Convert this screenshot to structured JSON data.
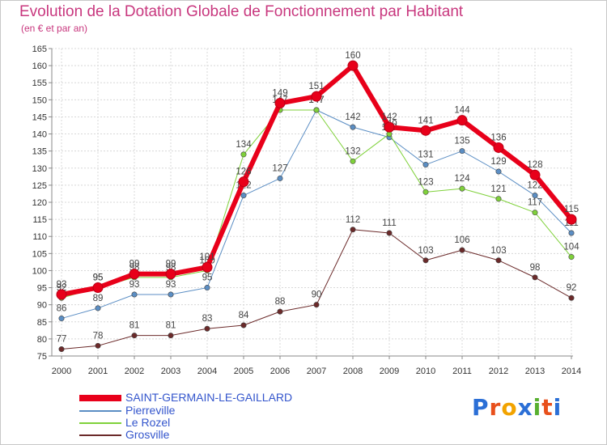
{
  "title": "Evolution de la Dotation Globale de Fonctionnement par Habitant",
  "subtitle": "(en € et par an)",
  "logo": {
    "letters": [
      "P",
      "r",
      "o",
      "x",
      "i",
      "t",
      "i"
    ],
    "colors": [
      "#2b6fd6",
      "#e8501c",
      "#f2a300",
      "#2b6fd6",
      "#58b030",
      "#e8501c",
      "#2b6fd6"
    ]
  },
  "chart_data": {
    "type": "line",
    "title": "Evolution de la Dotation Globale de Fonctionnement par Habitant",
    "subtitle": "(en € et par an)",
    "categories": [
      "2000",
      "2001",
      "2002",
      "2003",
      "2004",
      "2005",
      "2006",
      "2007",
      "2008",
      "2009",
      "2010",
      "2011",
      "2012",
      "2013",
      "2014"
    ],
    "ylim": [
      75,
      165
    ],
    "yticks": [
      75,
      80,
      85,
      90,
      95,
      100,
      105,
      110,
      115,
      120,
      125,
      130,
      135,
      140,
      145,
      150,
      155,
      160,
      165
    ],
    "series": [
      {
        "name": "Grosville",
        "color": "#6b2a2a",
        "width": 1,
        "values": [
          77,
          78,
          81,
          81,
          83,
          84,
          88,
          90,
          112,
          111,
          103,
          106,
          103,
          98,
          92
        ]
      },
      {
        "name": "Pierreville",
        "color": "#5b8ec4",
        "width": 1,
        "values": [
          86,
          89,
          93,
          93,
          95,
          122,
          127,
          147,
          142,
          139,
          131,
          135,
          129,
          122,
          111
        ]
      },
      {
        "name": "Le Rozel",
        "color": "#7fd13a",
        "width": 1,
        "values": [
          92,
          95,
          98,
          98,
          100,
          134,
          147,
          147,
          132,
          140,
          123,
          124,
          121,
          117,
          104
        ]
      },
      {
        "name": "SAINT-GERMAIN-LE-GAILLARD",
        "color": "#e8001a",
        "width": 6,
        "values": [
          93,
          95,
          99,
          99,
          101,
          126,
          149,
          151,
          160,
          142,
          141,
          144,
          136,
          128,
          115
        ]
      }
    ],
    "legend": [
      {
        "label": "SAINT-GERMAIN-LE-GAILLARD",
        "color": "#e8001a",
        "thickness": 8
      },
      {
        "label": "Pierreville",
        "color": "#5b8ec4",
        "thickness": 2
      },
      {
        "label": "Le Rozel",
        "color": "#7fd13a",
        "thickness": 2
      },
      {
        "label": "Grosville",
        "color": "#6b2a2a",
        "thickness": 2
      }
    ]
  }
}
